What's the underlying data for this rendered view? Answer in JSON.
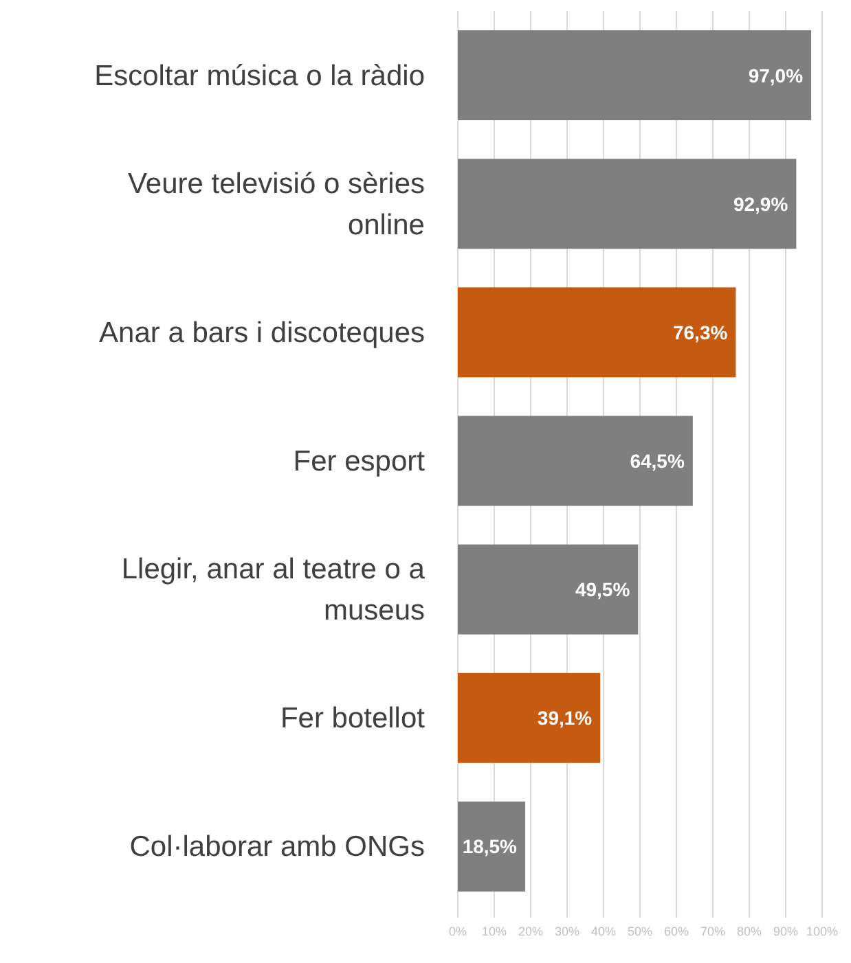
{
  "chart_data": {
    "type": "bar",
    "orientation": "horizontal",
    "categories": [
      "Escoltar música o la ràdio",
      "Veure televisió o sèries online",
      "Anar a bars i discoteques",
      "Fer esport",
      "Llegir, anar al teatre o a museus",
      "Fer botellot",
      "Col·laborar amb ONGs"
    ],
    "values": [
      97.0,
      92.9,
      76.3,
      64.5,
      49.5,
      39.1,
      18.5
    ],
    "colors": [
      "#7f7f7f",
      "#7f7f7f",
      "#c55a11",
      "#7f7f7f",
      "#7f7f7f",
      "#c55a11",
      "#7f7f7f"
    ],
    "value_labels": [
      "97,0%",
      "92,9%",
      "76,3%",
      "64,5%",
      "49,5%",
      "39,1%",
      "18,5%"
    ],
    "xlim": [
      0,
      100
    ],
    "xticks": [
      {
        "value": 0,
        "label": "0%"
      },
      {
        "value": 10,
        "label": "10%"
      },
      {
        "value": 20,
        "label": "20%"
      },
      {
        "value": 30,
        "label": "30%"
      },
      {
        "value": 40,
        "label": "40%"
      },
      {
        "value": 50,
        "label": "50%"
      },
      {
        "value": 60,
        "label": "60%"
      },
      {
        "value": 70,
        "label": "70%"
      },
      {
        "value": 80,
        "label": "80%"
      },
      {
        "value": 90,
        "label": "90%"
      },
      {
        "value": 100,
        "label": "100%"
      }
    ],
    "grid": "x"
  }
}
